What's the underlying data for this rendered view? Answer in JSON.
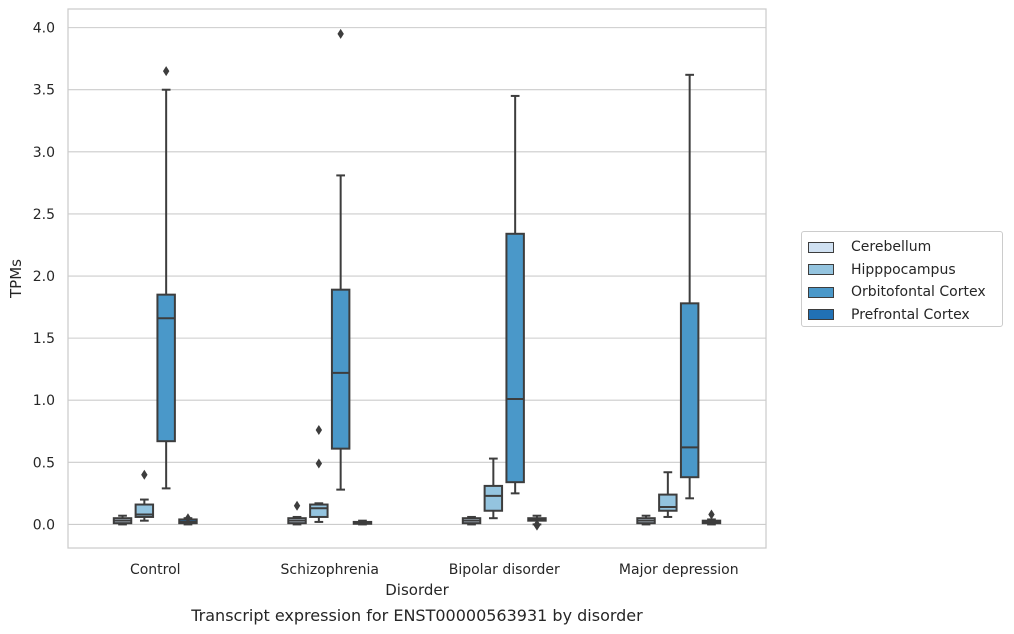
{
  "chart_data": {
    "type": "boxplot",
    "caption": "Transcript expression for ENST00000563931 by disorder",
    "xlabel": "Disorder",
    "ylabel": "TPMs",
    "ylim": [
      -0.19,
      4.15
    ],
    "yticks": [
      "0.0",
      "0.5",
      "1.0",
      "1.5",
      "2.0",
      "2.5",
      "3.0",
      "3.5",
      "4.0"
    ],
    "categories": [
      "Control",
      "Schizophrenia",
      "Bipolar disorder",
      "Major depression"
    ],
    "grid": true,
    "legend_position": "right",
    "series": [
      {
        "name": "Cerebellum",
        "color": "#d0e1f2",
        "boxes": [
          {
            "whislo": 0.0,
            "q1": 0.01,
            "med": 0.03,
            "q3": 0.05,
            "whishi": 0.07,
            "fliers": []
          },
          {
            "whislo": 0.0,
            "q1": 0.01,
            "med": 0.03,
            "q3": 0.05,
            "whishi": 0.06,
            "fliers": [
              0.15
            ]
          },
          {
            "whislo": 0.0,
            "q1": 0.01,
            "med": 0.03,
            "q3": 0.05,
            "whishi": 0.06,
            "fliers": []
          },
          {
            "whislo": 0.0,
            "q1": 0.01,
            "med": 0.03,
            "q3": 0.05,
            "whishi": 0.07,
            "fliers": []
          }
        ]
      },
      {
        "name": "Hipppocampus",
        "color": "#94c4df",
        "boxes": [
          {
            "whislo": 0.03,
            "q1": 0.06,
            "med": 0.08,
            "q3": 0.16,
            "whishi": 0.2,
            "fliers": [
              0.4
            ]
          },
          {
            "whislo": 0.02,
            "q1": 0.06,
            "med": 0.13,
            "q3": 0.16,
            "whishi": 0.17,
            "fliers": [
              0.49,
              0.76
            ]
          },
          {
            "whislo": 0.05,
            "q1": 0.11,
            "med": 0.23,
            "q3": 0.31,
            "whishi": 0.53,
            "fliers": []
          },
          {
            "whislo": 0.06,
            "q1": 0.11,
            "med": 0.14,
            "q3": 0.24,
            "whishi": 0.42,
            "fliers": []
          }
        ]
      },
      {
        "name": "Orbitofontal Cortex",
        "color": "#4a98c9",
        "boxes": [
          {
            "whislo": 0.29,
            "q1": 0.67,
            "med": 1.66,
            "q3": 1.85,
            "whishi": 3.5,
            "fliers": [
              3.65
            ]
          },
          {
            "whislo": 0.28,
            "q1": 0.61,
            "med": 1.22,
            "q3": 1.89,
            "whishi": 2.81,
            "fliers": [
              3.95
            ]
          },
          {
            "whislo": 0.25,
            "q1": 0.34,
            "med": 1.01,
            "q3": 2.34,
            "whishi": 3.45,
            "fliers": []
          },
          {
            "whislo": 0.21,
            "q1": 0.38,
            "med": 0.62,
            "q3": 1.78,
            "whishi": 3.62,
            "fliers": []
          }
        ]
      },
      {
        "name": "Prefrontal Cortex",
        "color": "#2171b5",
        "boxes": [
          {
            "whislo": 0.0,
            "q1": 0.01,
            "med": 0.02,
            "q3": 0.04,
            "whishi": 0.05,
            "fliers": [
              0.05
            ]
          },
          {
            "whislo": 0.0,
            "q1": 0.005,
            "med": 0.01,
            "q3": 0.02,
            "whishi": 0.03,
            "fliers": []
          },
          {
            "whislo": 0.0,
            "q1": 0.03,
            "med": 0.04,
            "q3": 0.05,
            "whishi": 0.07,
            "fliers": [
              0.0,
              -0.01
            ]
          },
          {
            "whislo": 0.0,
            "q1": 0.01,
            "med": 0.02,
            "q3": 0.03,
            "whishi": 0.04,
            "fliers": [
              0.08
            ]
          }
        ]
      }
    ]
  }
}
